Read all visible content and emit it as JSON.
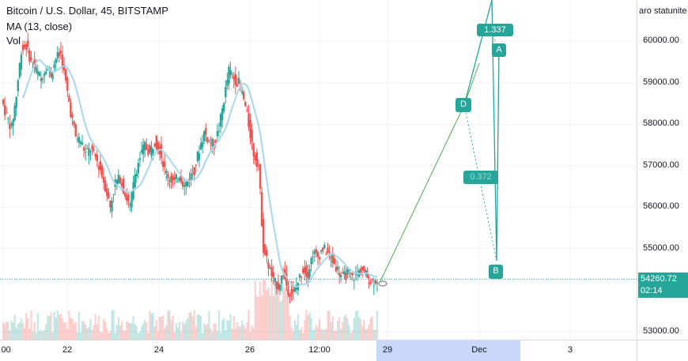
{
  "legend": {
    "title": "Bitcoin / U.S. Dollar, 45, BITSTAMP",
    "ma": "MA (13, close)",
    "vol": "Vol"
  },
  "top_right_text": "aro statunite",
  "current_price": {
    "value": "54260.72",
    "countdown": "02:14",
    "level": 54260.72
  },
  "colors": {
    "up": "#26a69a",
    "down": "#ef5350",
    "ma": "#a8d8ef",
    "pattern": "#4caf50",
    "pattern_label": "#26a69a",
    "crosshair": "#9598a1"
  },
  "chart_data": {
    "type": "candlestick",
    "symbol": "BTCUSD",
    "interval": "45",
    "exchange": "BITSTAMP",
    "ylim": [
      52800,
      61000
    ],
    "y_ticks": [
      "60000.00",
      "59000.00",
      "58000.00",
      "57000.00",
      "56000.00",
      "55000.00",
      "53000.00"
    ],
    "x_ticks": [
      "00",
      "22",
      "24",
      "26",
      "12:00",
      "29",
      "Dec",
      "3"
    ],
    "price_path": [
      [
        0,
        58600
      ],
      [
        1,
        58200
      ],
      [
        2,
        57900
      ],
      [
        3,
        58700
      ],
      [
        4,
        59800
      ],
      [
        5,
        59900
      ],
      [
        6,
        59500
      ],
      [
        7,
        59300
      ],
      [
        8,
        59100
      ],
      [
        9,
        59400
      ],
      [
        10,
        59200
      ],
      [
        11,
        59600
      ],
      [
        12,
        59700
      ],
      [
        13,
        59000
      ],
      [
        14,
        58300
      ],
      [
        15,
        57700
      ],
      [
        16,
        57600
      ],
      [
        17,
        57300
      ],
      [
        18,
        57400
      ],
      [
        19,
        57200
      ],
      [
        20,
        56900
      ],
      [
        21,
        56500
      ],
      [
        22,
        56000
      ],
      [
        23,
        56600
      ],
      [
        24,
        56700
      ],
      [
        25,
        56300
      ],
      [
        26,
        56000
      ],
      [
        27,
        56800
      ],
      [
        28,
        57200
      ],
      [
        29,
        57500
      ],
      [
        30,
        57300
      ],
      [
        31,
        57600
      ],
      [
        32,
        57400
      ],
      [
        33,
        56900
      ],
      [
        34,
        56700
      ],
      [
        35,
        56600
      ],
      [
        36,
        56800
      ],
      [
        37,
        56500
      ],
      [
        38,
        56700
      ],
      [
        39,
        56900
      ],
      [
        40,
        57400
      ],
      [
        41,
        57800
      ],
      [
        42,
        57600
      ],
      [
        43,
        57500
      ],
      [
        44,
        57900
      ],
      [
        45,
        58600
      ],
      [
        46,
        59300
      ],
      [
        47,
        59100
      ],
      [
        48,
        59000
      ],
      [
        49,
        58600
      ],
      [
        50,
        58000
      ],
      [
        51,
        57300
      ],
      [
        52,
        57000
      ],
      [
        53,
        55000
      ],
      [
        54,
        54600
      ],
      [
        55,
        54200
      ],
      [
        56,
        54100
      ],
      [
        57,
        54400
      ],
      [
        58,
        54000
      ],
      [
        59,
        53900
      ],
      [
        60,
        54200
      ],
      [
        61,
        54500
      ],
      [
        62,
        54400
      ],
      [
        63,
        54900
      ],
      [
        64,
        54800
      ],
      [
        65,
        55000
      ],
      [
        66,
        54900
      ],
      [
        67,
        54700
      ],
      [
        68,
        54500
      ],
      [
        69,
        54300
      ],
      [
        70,
        54400
      ],
      [
        71,
        54300
      ],
      [
        72,
        54400
      ],
      [
        73,
        54500
      ],
      [
        74,
        54300
      ],
      [
        75,
        54200
      ],
      [
        76,
        54260
      ]
    ],
    "ma_period": 13,
    "pattern": {
      "name": "XABCD",
      "labels": [
        "D",
        "A",
        "B",
        "1.337",
        "0.372"
      ]
    }
  }
}
